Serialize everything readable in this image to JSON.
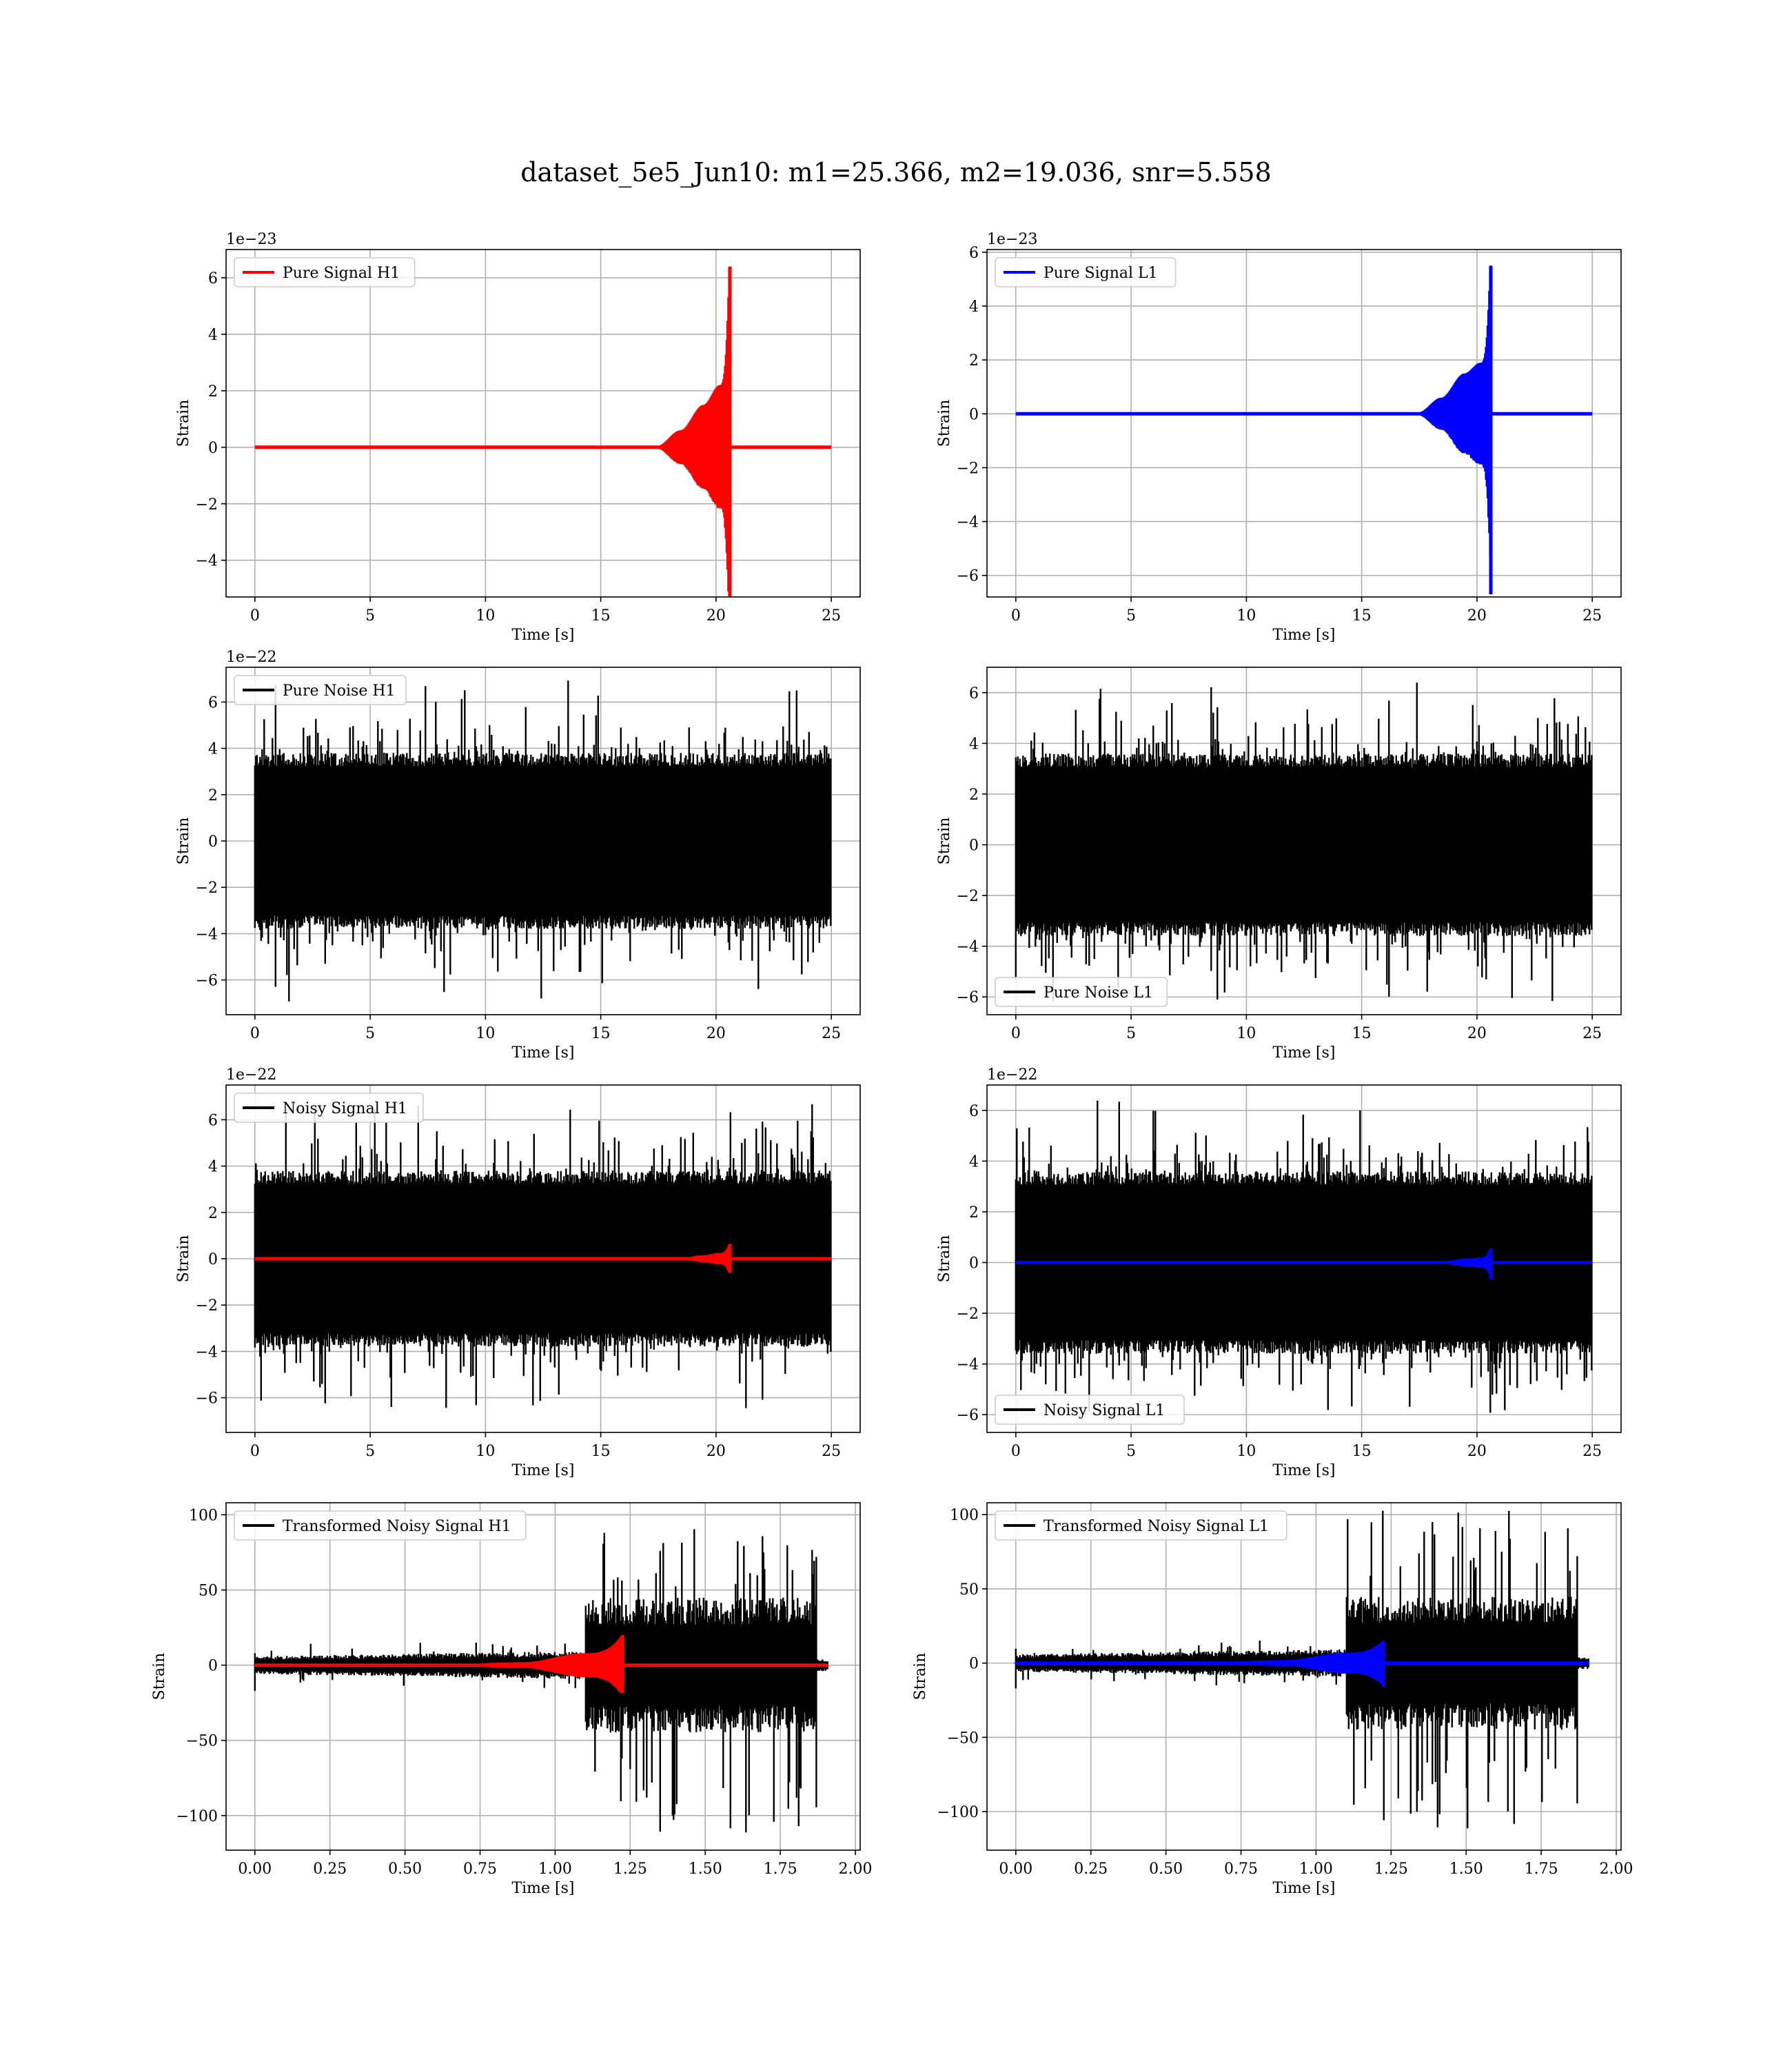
{
  "figure": {
    "title": "dataset_5e5_Jun10: m1=25.366, m2=19.036, snr=5.558"
  },
  "colors": {
    "h1_signal": "#ff0000",
    "l1_signal": "#0000ff",
    "noise": "#000000",
    "grid": "#b0b0b0"
  },
  "chart_data": [
    {
      "id": "pure-signal-h1",
      "type": "line",
      "row": 0,
      "col": 0,
      "xlabel": "Time [s]",
      "ylabel": "Strain",
      "offset_text": "1e−23",
      "xlim": [
        -1.25,
        26.25
      ],
      "ylim": [
        -5.3,
        7.0
      ],
      "xticks": [
        0,
        5,
        10,
        15,
        20,
        25
      ],
      "xtick_labels": [
        "0",
        "5",
        "10",
        "15",
        "20",
        "25"
      ],
      "yticks": [
        -4,
        -2,
        0,
        2,
        4,
        6
      ],
      "ytick_labels": [
        "−4",
        "−2",
        "0",
        "2",
        "4",
        "6"
      ],
      "legend": {
        "position": "upper left"
      },
      "series": [
        {
          "name": "Pure Signal H1",
          "kind": "chirp",
          "color": "#ff0000",
          "x_start": 0,
          "x_end": 25,
          "t_merge": 20.6,
          "envelope": [
            [
              17.5,
              0.05
            ],
            [
              18.5,
              0.6
            ],
            [
              19.5,
              1.5
            ],
            [
              20.2,
              2.2
            ],
            [
              20.6,
              6.4
            ]
          ],
          "min_peak": -5.2,
          "x_stop_late": 25
        }
      ]
    },
    {
      "id": "pure-signal-l1",
      "type": "line",
      "row": 0,
      "col": 1,
      "xlabel": "Time [s]",
      "ylabel": "Strain",
      "offset_text": "1e−23",
      "xlim": [
        -1.25,
        26.25
      ],
      "ylim": [
        -6.8,
        6.1
      ],
      "xticks": [
        0,
        5,
        10,
        15,
        20,
        25
      ],
      "xtick_labels": [
        "0",
        "5",
        "10",
        "15",
        "20",
        "25"
      ],
      "yticks": [
        -6,
        -4,
        -2,
        0,
        2,
        4,
        6
      ],
      "ytick_labels": [
        "−6",
        "−4",
        "−2",
        "0",
        "2",
        "4",
        "6"
      ],
      "legend": {
        "position": "upper left"
      },
      "series": [
        {
          "name": "Pure Signal L1",
          "kind": "chirp",
          "color": "#0000ff",
          "x_start": 0,
          "x_end": 25,
          "t_merge": 20.6,
          "envelope": [
            [
              17.5,
              0.05
            ],
            [
              18.5,
              0.6
            ],
            [
              19.5,
              1.5
            ],
            [
              20.2,
              1.9
            ],
            [
              20.6,
              5.5
            ]
          ],
          "min_peak": -6.7
        }
      ]
    },
    {
      "id": "pure-noise-h1",
      "type": "line",
      "row": 1,
      "col": 0,
      "xlabel": "Time [s]",
      "ylabel": "Strain",
      "offset_text": "1e−22",
      "xlim": [
        -1.25,
        26.25
      ],
      "ylim": [
        -7.5,
        7.5
      ],
      "xticks": [
        0,
        5,
        10,
        15,
        20,
        25
      ],
      "xtick_labels": [
        "0",
        "5",
        "10",
        "15",
        "20",
        "25"
      ],
      "yticks": [
        -6,
        -4,
        -2,
        0,
        2,
        4,
        6
      ],
      "ytick_labels": [
        "−6",
        "−4",
        "−2",
        "0",
        "2",
        "4",
        "6"
      ],
      "legend": {
        "position": "upper left"
      },
      "series": [
        {
          "name": "Pure Noise H1",
          "kind": "noise",
          "color": "#000000",
          "x_start": 0,
          "x_end": 25,
          "core": 3.8,
          "spike_max": 7.0,
          "spike_min": -7.0
        }
      ]
    },
    {
      "id": "pure-noise-l1",
      "type": "line",
      "row": 1,
      "col": 1,
      "xlabel": "Time [s]",
      "ylabel": "Strain",
      "offset_text": "",
      "xlim": [
        -1.25,
        26.25
      ],
      "ylim": [
        -6.7,
        7.0
      ],
      "xticks": [
        0,
        5,
        10,
        15,
        20,
        25
      ],
      "xtick_labels": [
        "0",
        "5",
        "10",
        "15",
        "20",
        "25"
      ],
      "yticks": [
        -6,
        -4,
        -2,
        0,
        2,
        4,
        6
      ],
      "ytick_labels": [
        "−6",
        "−4",
        "−2",
        "0",
        "2",
        "4",
        "6"
      ],
      "legend": {
        "position": "lower left"
      },
      "series": [
        {
          "name": "Pure Noise L1",
          "kind": "noise",
          "color": "#000000",
          "x_start": 0,
          "x_end": 25,
          "core": 3.6,
          "spike_max": 6.5,
          "spike_min": -6.2
        }
      ]
    },
    {
      "id": "noisy-signal-h1",
      "type": "line",
      "row": 2,
      "col": 0,
      "xlabel": "Time [s]",
      "ylabel": "Strain",
      "offset_text": "1e−22",
      "xlim": [
        -1.25,
        26.25
      ],
      "ylim": [
        -7.5,
        7.5
      ],
      "xticks": [
        0,
        5,
        10,
        15,
        20,
        25
      ],
      "xtick_labels": [
        "0",
        "5",
        "10",
        "15",
        "20",
        "25"
      ],
      "yticks": [
        -6,
        -4,
        -2,
        0,
        2,
        4,
        6
      ],
      "ytick_labels": [
        "−6",
        "−4",
        "−2",
        "0",
        "2",
        "4",
        "6"
      ],
      "legend": {
        "position": "upper left"
      },
      "series": [
        {
          "name": "Noisy Signal H1",
          "kind": "noise",
          "color": "#000000",
          "x_start": 0,
          "x_end": 25,
          "core": 3.8,
          "spike_max": 7.0,
          "spike_min": -7.0
        },
        {
          "name": "",
          "kind": "chirp",
          "color": "#ff0000",
          "x_start": 0,
          "x_end": 25,
          "t_merge": 20.6,
          "envelope": [
            [
              18.5,
              0.03
            ],
            [
              19.5,
              0.15
            ],
            [
              20.2,
              0.25
            ],
            [
              20.6,
              0.64
            ]
          ],
          "min_peak": -0.52
        }
      ]
    },
    {
      "id": "noisy-signal-l1",
      "type": "line",
      "row": 2,
      "col": 1,
      "xlabel": "Time [s]",
      "ylabel": "Strain",
      "offset_text": "1e−22",
      "xlim": [
        -1.25,
        26.25
      ],
      "ylim": [
        -6.7,
        7.0
      ],
      "xticks": [
        0,
        5,
        10,
        15,
        20,
        25
      ],
      "xtick_labels": [
        "0",
        "5",
        "10",
        "15",
        "20",
        "25"
      ],
      "yticks": [
        -6,
        -4,
        -2,
        0,
        2,
        4,
        6
      ],
      "ytick_labels": [
        "−6",
        "−4",
        "−2",
        "0",
        "2",
        "4",
        "6"
      ],
      "legend": {
        "position": "lower left"
      },
      "series": [
        {
          "name": "Noisy Signal L1",
          "kind": "noise",
          "color": "#000000",
          "x_start": 0,
          "x_end": 25,
          "core": 3.6,
          "spike_max": 6.5,
          "spike_min": -6.2
        },
        {
          "name": "",
          "kind": "chirp",
          "color": "#0000ff",
          "x_start": 0,
          "x_end": 25,
          "t_merge": 20.6,
          "envelope": [
            [
              18.5,
              0.03
            ],
            [
              19.5,
              0.15
            ],
            [
              20.2,
              0.2
            ],
            [
              20.6,
              0.55
            ]
          ],
          "min_peak": -0.67
        }
      ]
    },
    {
      "id": "transformed-noisy-signal-h1",
      "type": "line",
      "row": 3,
      "col": 0,
      "xlabel": "Time [s]",
      "ylabel": "Strain",
      "offset_text": "",
      "xlim": [
        -0.096,
        2.016
      ],
      "ylim": [
        -123,
        108
      ],
      "xticks": [
        0.0,
        0.25,
        0.5,
        0.75,
        1.0,
        1.25,
        1.5,
        1.75,
        2.0
      ],
      "xtick_labels": [
        "0.00",
        "0.25",
        "0.50",
        "0.75",
        "1.00",
        "1.25",
        "1.50",
        "1.75",
        "2.00"
      ],
      "yticks": [
        -100,
        -50,
        0,
        50,
        100
      ],
      "ytick_labels": [
        "−100",
        "−50",
        "0",
        "50",
        "100"
      ],
      "legend": {
        "position": "upper left"
      },
      "series": [
        {
          "name": "Transformed Noisy Signal H1",
          "kind": "whitened",
          "color": "#000000",
          "x_start": 0,
          "x_end": 1.91,
          "t_jump": 1.1,
          "t_stop": 1.87,
          "pre_core": 6,
          "post_core": 45,
          "spike_max": 93,
          "spike_min": -112
        },
        {
          "name": "",
          "kind": "chirp",
          "color": "#ff0000",
          "x_start": 0,
          "x_end": 1.91,
          "t_merge": 1.225,
          "envelope": [
            [
              0.6,
              0.3
            ],
            [
              0.9,
              2.0
            ],
            [
              1.1,
              8.0
            ],
            [
              1.225,
              20.0
            ]
          ],
          "min_peak": -13
        }
      ]
    },
    {
      "id": "transformed-noisy-signal-l1",
      "type": "line",
      "row": 3,
      "col": 1,
      "xlabel": "Time [s]",
      "ylabel": "Strain",
      "offset_text": "",
      "xlim": [
        -0.096,
        2.016
      ],
      "ylim": [
        -126,
        108
      ],
      "xticks": [
        0.0,
        0.25,
        0.5,
        0.75,
        1.0,
        1.25,
        1.5,
        1.75,
        2.0
      ],
      "xtick_labels": [
        "0.00",
        "0.25",
        "0.50",
        "0.75",
        "1.00",
        "1.25",
        "1.50",
        "1.75",
        "2.00"
      ],
      "yticks": [
        -100,
        -50,
        0,
        50,
        100
      ],
      "ytick_labels": [
        "−100",
        "−50",
        "0",
        "50",
        "100"
      ],
      "legend": {
        "position": "upper left"
      },
      "series": [
        {
          "name": "Transformed Noisy Signal L1",
          "kind": "whitened",
          "color": "#000000",
          "x_start": 0,
          "x_end": 1.91,
          "t_jump": 1.1,
          "t_stop": 1.87,
          "pre_core": 6,
          "post_core": 45,
          "spike_max": 104,
          "spike_min": -115
        },
        {
          "name": "",
          "kind": "chirp",
          "color": "#0000ff",
          "x_start": 0,
          "x_end": 1.91,
          "t_merge": 1.225,
          "envelope": [
            [
              0.6,
              0.3
            ],
            [
              0.9,
              2.0
            ],
            [
              1.1,
              7.0
            ],
            [
              1.225,
              15.0
            ]
          ],
          "min_peak": -16
        }
      ]
    }
  ]
}
